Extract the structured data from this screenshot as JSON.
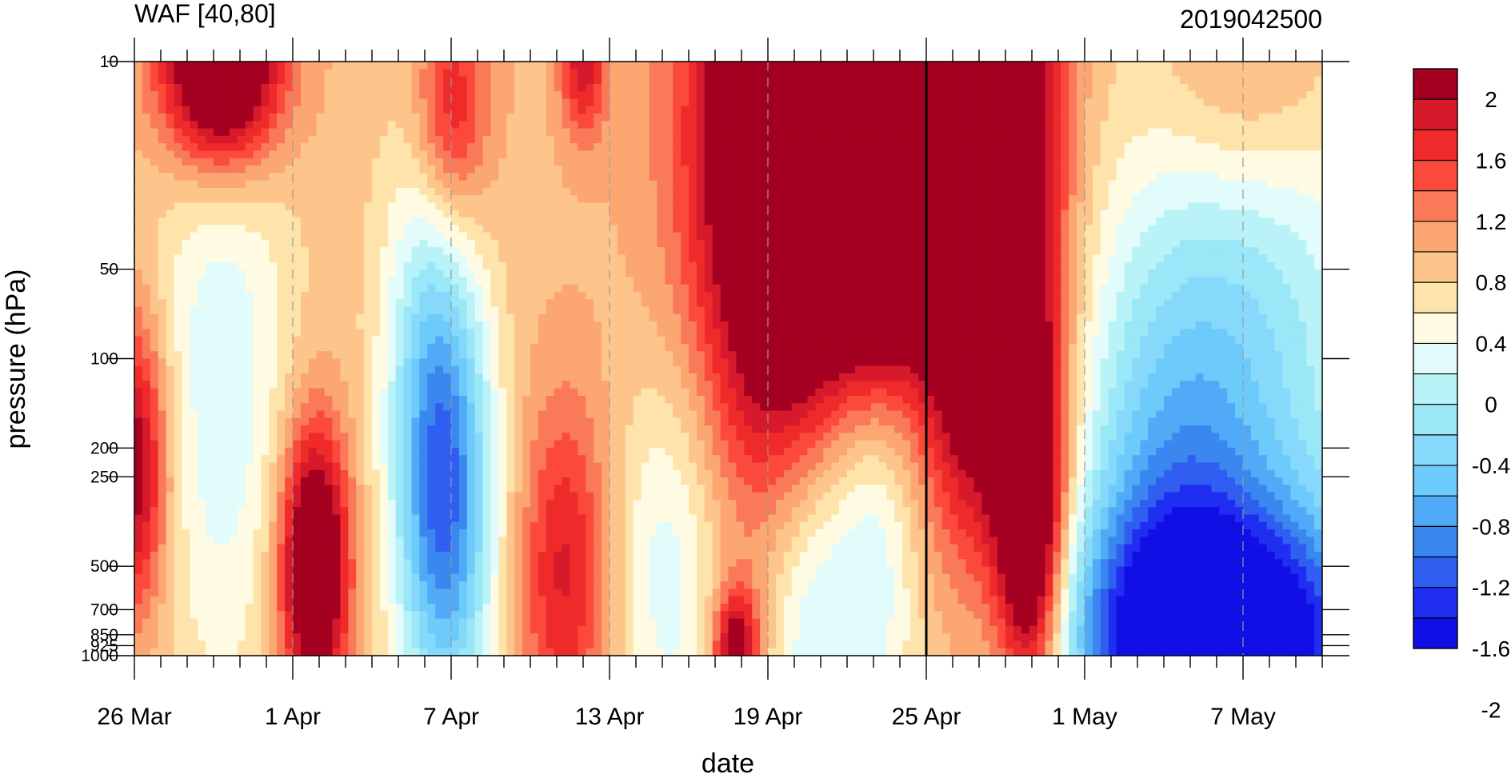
{
  "chart_data": {
    "type": "heatmap",
    "title_left": "WAF [40,80]",
    "title_right": "2019042500",
    "xlabel": "date",
    "ylabel": "pressure (hPa)",
    "x_tick_labels": [
      "26 Mar",
      "1 Apr",
      "7 Apr",
      "13 Apr",
      "19 Apr",
      "25 Apr",
      "1 May",
      "7 May"
    ],
    "x_tick_days": [
      0,
      6,
      12,
      18,
      24,
      30,
      36,
      42
    ],
    "x_range_days": [
      0,
      45
    ],
    "y_tick_labels": [
      "10",
      "50",
      "100",
      "200",
      "250",
      "500",
      "700",
      "850",
      "925",
      "1000"
    ],
    "y_tick_values": [
      10,
      50,
      100,
      200,
      250,
      500,
      700,
      850,
      925,
      1000
    ],
    "y_scale": "log",
    "y_range": [
      1000,
      10
    ],
    "levels": [
      -2.2,
      -2.0,
      -1.8,
      -1.6,
      -1.4,
      -1.2,
      -1.0,
      -0.8,
      -0.6,
      -0.4,
      -0.2,
      0.0,
      0.2,
      0.4,
      0.6,
      0.8,
      1.0,
      1.2,
      1.4,
      1.6,
      1.8,
      2.0,
      2.2
    ],
    "colorbar_labels": [
      "2",
      "1.6",
      "1.2",
      "0.8",
      "0.4",
      "0",
      "-0.4",
      "-0.8",
      "-1.2",
      "-1.6",
      "-2"
    ],
    "colorbar_colors_top_to_bottom": [
      "#a50021",
      "#d7192c",
      "#ef2a2a",
      "#fb4a3c",
      "#f97959",
      "#fca672",
      "#fdc58c",
      "#fee3ab",
      "#fffbe2",
      "#e2fbfb",
      "#b9f3f8",
      "#9ae7f8",
      "#87d9fb",
      "#6ccbfb",
      "#50aaf7",
      "#3b87f0",
      "#2f5ef0",
      "#1f2ef0",
      "#1010e6"
    ],
    "current_date_line": "25 Apr",
    "anomaly_centers": [
      {
        "day": 3.3,
        "p": 10,
        "v": 2.3,
        "sx": 1.6,
        "sy": 0.25
      },
      {
        "day": 0.0,
        "p": 230,
        "v": 1.4,
        "sx": 0.9,
        "sy": 0.35
      },
      {
        "day": 12.0,
        "p": 15,
        "v": 1.0,
        "sx": 1.0,
        "sy": 0.28
      },
      {
        "day": 17.0,
        "p": 10,
        "v": 1.0,
        "sx": 0.6,
        "sy": 0.18
      },
      {
        "day": 6.8,
        "p": 500,
        "v": 2.0,
        "sx": 0.9,
        "sy": 0.33
      },
      {
        "day": 3.3,
        "p": 120,
        "v": -0.7,
        "sx": 2.0,
        "sy": 0.8
      },
      {
        "day": 11.8,
        "p": 320,
        "v": -1.8,
        "sx": 1.3,
        "sy": 0.55
      },
      {
        "day": 11.0,
        "p": 80,
        "v": -0.6,
        "sx": 1.3,
        "sy": 0.6
      },
      {
        "day": 16.3,
        "p": 520,
        "v": 0.9,
        "sx": 1.2,
        "sy": 0.4
      },
      {
        "day": 20.3,
        "p": 500,
        "v": -0.7,
        "sx": 1.5,
        "sy": 0.5
      },
      {
        "day": 22.8,
        "p": 980,
        "v": 1.5,
        "sx": 0.6,
        "sy": 0.15
      },
      {
        "day": 25.3,
        "p": 20,
        "v": 2.9,
        "sx": 2.6,
        "sy": 0.75
      },
      {
        "day": 28.3,
        "p": 45,
        "v": 1.3,
        "sx": 1.2,
        "sy": 0.35
      },
      {
        "day": 25.5,
        "p": 650,
        "v": -0.8,
        "sx": 1.3,
        "sy": 0.55
      },
      {
        "day": 28.0,
        "p": 260,
        "v": -1.0,
        "sx": 1.4,
        "sy": 0.6
      },
      {
        "day": 32.2,
        "p": 20,
        "v": 2.9,
        "sx": 1.8,
        "sy": 0.8
      },
      {
        "day": 34.0,
        "p": 380,
        "v": 2.0,
        "sx": 0.9,
        "sy": 0.45
      },
      {
        "day": 41.5,
        "p": 900,
        "v": -2.2,
        "sx": 4.5,
        "sy": 0.3
      },
      {
        "day": 42.0,
        "p": 130,
        "v": -1.1,
        "sx": 4.0,
        "sy": 0.95
      },
      {
        "day": 42.0,
        "p": 12,
        "v": 0.6,
        "sx": 2.5,
        "sy": 0.3
      },
      {
        "day": 39.0,
        "p": 400,
        "v": -0.9,
        "sx": 2.5,
        "sy": 0.6
      }
    ],
    "background_value": 0.35,
    "legend": "colorbar-right"
  }
}
